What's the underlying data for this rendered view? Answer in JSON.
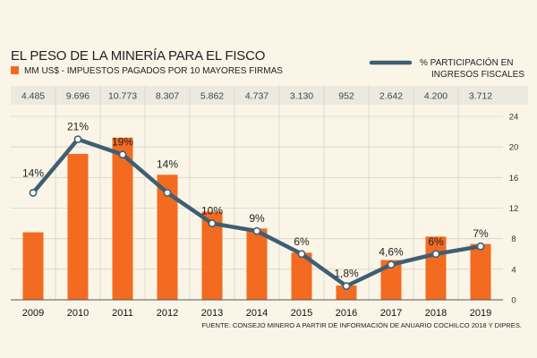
{
  "colors": {
    "bar": "#f26b21",
    "line": "#3e5f73",
    "point_fill": "#ffffff",
    "band": "#ece9de",
    "background": "#fbf5e8",
    "grid": "#d9d4c8"
  },
  "chart_data": {
    "type": "bar+line",
    "title": "EL PESO DE LA MINERÍA PARA EL FISCO",
    "legend": {
      "bar_label": "MM US$ - IMPUESTOS PAGADOS POR 10 MAYORES FIRMAS",
      "line_label_line1": "% PARTICIPACIÓN EN",
      "line_label_line2": "INGRESOS FISCALES"
    },
    "categories": [
      "2009",
      "2010",
      "2011",
      "2012",
      "2013",
      "2014",
      "2015",
      "2016",
      "2017",
      "2018",
      "2019"
    ],
    "bar_series": {
      "values": [
        4485,
        9696,
        10773,
        8307,
        5862,
        4737,
        3130,
        952,
        2642,
        4200,
        3712
      ],
      "labels": [
        "4.485",
        "9.696",
        "10.773",
        "8.307",
        "5.862",
        "4.737",
        "3.130",
        "952",
        "2.642",
        "4.200",
        "3.712"
      ]
    },
    "line_series": {
      "values": [
        14,
        21,
        19,
        14,
        10,
        9,
        6,
        1.8,
        4.6,
        6,
        7
      ],
      "labels": [
        "14%",
        "21%",
        "19%",
        "14%",
        "10%",
        "9%",
        "6%",
        "1,8%",
        "4,6%",
        "6%",
        "7%"
      ]
    },
    "right_axis": {
      "ticks": [
        "0",
        "4",
        "8",
        "12",
        "16",
        "20",
        "24"
      ],
      "ylim": [
        0,
        24
      ]
    },
    "source": "FUENTE: CONSEJO MINERO A PARTIR DE INFORMACIÓN DE ANUARIO COCHILCO 2018 Y DIPRES."
  }
}
